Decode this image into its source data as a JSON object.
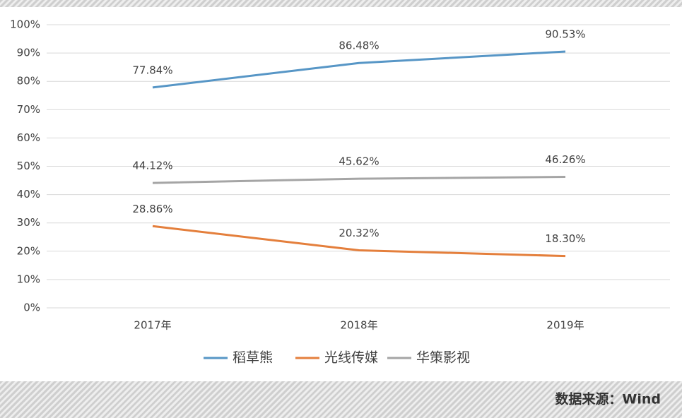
{
  "chart_data": {
    "type": "line",
    "categories": [
      "2017年",
      "2018年",
      "2019年"
    ],
    "series": [
      {
        "name": "稻草熊",
        "color": "#5796c6",
        "values": [
          77.84,
          86.48,
          90.53
        ],
        "value_labels": [
          "77.84%",
          "86.48%",
          "90.53%"
        ]
      },
      {
        "name": "光线传媒",
        "color": "#e47f3c",
        "values": [
          28.86,
          20.32,
          18.3
        ],
        "value_labels": [
          "28.86%",
          "20.32%",
          "18.30%"
        ]
      },
      {
        "name": "华策影视",
        "color": "#a5a5a5",
        "values": [
          44.12,
          45.62,
          46.26
        ],
        "value_labels": [
          "44.12%",
          "45.62%",
          "46.26%"
        ]
      }
    ],
    "ylim": [
      0,
      100
    ],
    "yticks": [
      {
        "value": 0,
        "label": "0%"
      },
      {
        "value": 10,
        "label": "10%"
      },
      {
        "value": 20,
        "label": "20%"
      },
      {
        "value": 30,
        "label": "30%"
      },
      {
        "value": 40,
        "label": "40%"
      },
      {
        "value": 50,
        "label": "50%"
      },
      {
        "value": 60,
        "label": "60%"
      },
      {
        "value": 70,
        "label": "70%"
      },
      {
        "value": 80,
        "label": "80%"
      },
      {
        "value": 90,
        "label": "90%"
      },
      {
        "value": 100,
        "label": "100%"
      }
    ],
    "grid": true,
    "legend": "bottom",
    "source": "数据来源：Wind"
  }
}
